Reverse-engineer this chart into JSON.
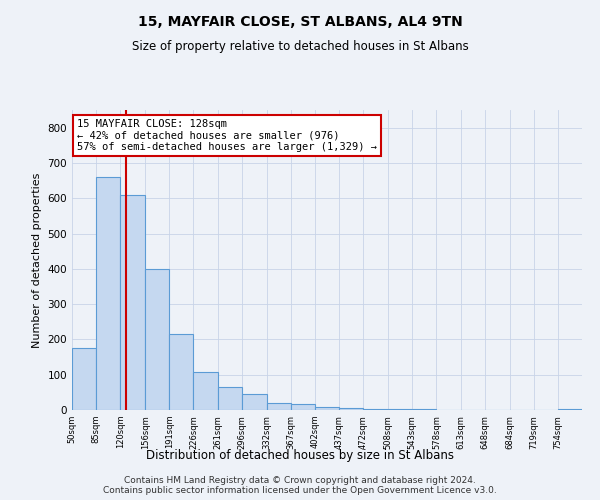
{
  "title": "15, MAYFAIR CLOSE, ST ALBANS, AL4 9TN",
  "subtitle": "Size of property relative to detached houses in St Albans",
  "xlabel": "Distribution of detached houses by size in St Albans",
  "ylabel": "Number of detached properties",
  "bin_labels": [
    "50sqm",
    "85sqm",
    "120sqm",
    "156sqm",
    "191sqm",
    "226sqm",
    "261sqm",
    "296sqm",
    "332sqm",
    "367sqm",
    "402sqm",
    "437sqm",
    "472sqm",
    "508sqm",
    "543sqm",
    "578sqm",
    "613sqm",
    "648sqm",
    "684sqm",
    "719sqm",
    "754sqm"
  ],
  "bin_edges": [
    50,
    85,
    120,
    156,
    191,
    226,
    261,
    296,
    332,
    367,
    402,
    437,
    472,
    508,
    543,
    578,
    613,
    648,
    684,
    719,
    754,
    789
  ],
  "bar_heights": [
    175,
    660,
    610,
    400,
    215,
    108,
    65,
    45,
    20,
    18,
    8,
    5,
    3,
    2,
    2,
    1,
    1,
    1,
    1,
    1,
    2
  ],
  "bar_color": "#c5d8f0",
  "bar_edge_color": "#5b9bd5",
  "property_size": 128,
  "red_line_color": "#cc0000",
  "annotation_text": "15 MAYFAIR CLOSE: 128sqm\n← 42% of detached houses are smaller (976)\n57% of semi-detached houses are larger (1,329) →",
  "annotation_box_color": "#ffffff",
  "annotation_box_edge": "#cc0000",
  "ylim": [
    0,
    850
  ],
  "yticks": [
    0,
    100,
    200,
    300,
    400,
    500,
    600,
    700,
    800
  ],
  "footer_text": "Contains HM Land Registry data © Crown copyright and database right 2024.\nContains public sector information licensed under the Open Government Licence v3.0.",
  "background_color": "#eef2f8"
}
